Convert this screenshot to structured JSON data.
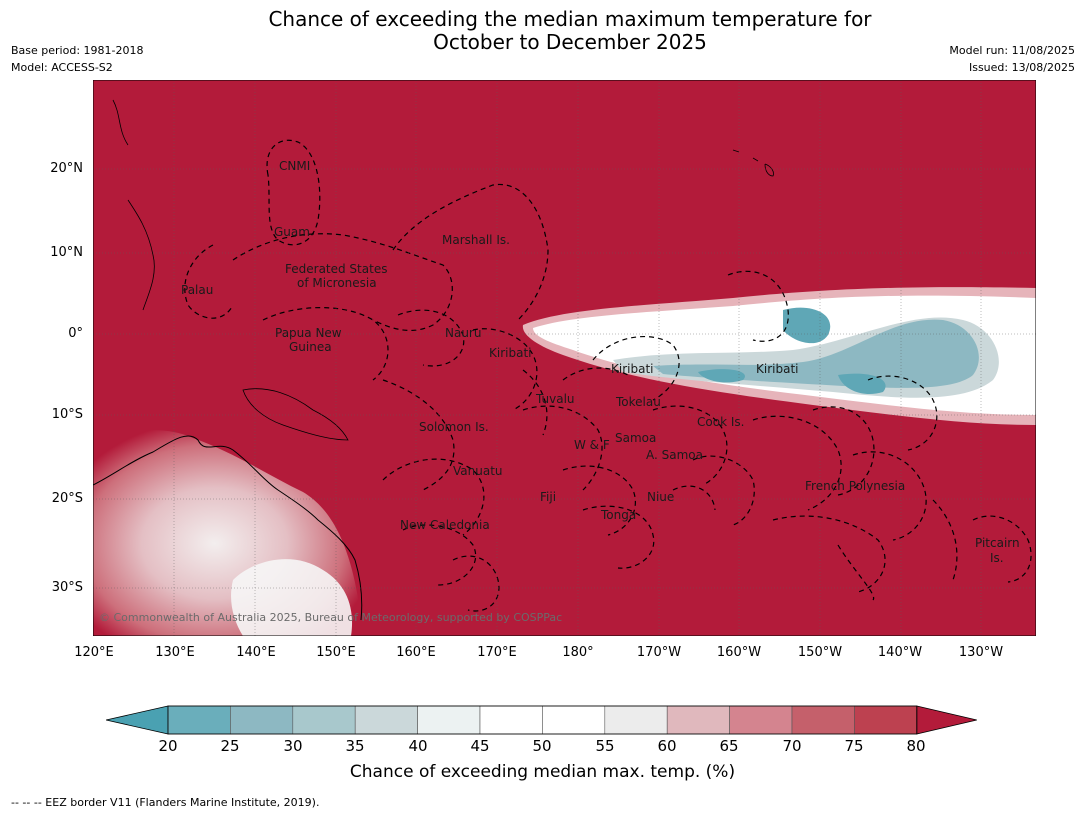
{
  "title_line1": "Chance of exceeding the median maximum temperature for",
  "title_line2": "October to December 2025",
  "meta_left": {
    "base_period": "Base period: 1981-2018",
    "model": "Model: ACCESS-S2"
  },
  "meta_right": {
    "model_run": "Model run: 11/08/2025",
    "issued": "Issued: 13/08/2025"
  },
  "map": {
    "lat_ticks": [
      "20°N",
      "10°N",
      "0°",
      "10°S",
      "20°S",
      "30°S"
    ],
    "lon_ticks": [
      "120°E",
      "130°E",
      "140°E",
      "150°E",
      "160°E",
      "170°E",
      "180°",
      "170°W",
      "160°W",
      "150°W",
      "140°W",
      "130°W"
    ],
    "regions": {
      "cnmi": "CNMI",
      "guam": "Guam",
      "marshall": "Marshall Is.",
      "fsm_1": "Federated States",
      "fsm_2": "of Micronesia",
      "palau": "Palau",
      "png_1": "Papua New",
      "png_2": "Guinea",
      "nauru": "Nauru",
      "kiribati_w": "Kiribati",
      "kiribati_c": "Kiribati",
      "kiribati_e": "Kiribati",
      "tuvalu": "Tuvalu",
      "tokelau": "Tokelau",
      "solomon": "Solomon Is.",
      "cook": "Cook Is.",
      "samoa": "Samoa",
      "wf": "W & F",
      "asamoa": "A. Samoa",
      "vanuatu": "Vanuatu",
      "fiji": "Fiji",
      "niue": "Niue",
      "tonga": "Tonga",
      "french_polynesia": "French Polynesia",
      "new_caledonia": "New Caledonia",
      "pitcairn_1": "Pitcairn",
      "pitcairn_2": "Is."
    },
    "copyright": "© Commonwealth of Australia 2025, Bureau of Meteorology, supported by COSPPac",
    "colors": {
      "high": "#b31b3a",
      "mid_high": "#d4848f",
      "neutral": "#ffffff",
      "low": "#6aaebb",
      "lowest": "#3d9fb0"
    }
  },
  "colorbar": {
    "ticks": [
      "20",
      "25",
      "30",
      "35",
      "40",
      "45",
      "50",
      "55",
      "60",
      "65",
      "70",
      "75",
      "80"
    ],
    "colors": [
      "#4aa1b2",
      "#6aaebb",
      "#8db8c2",
      "#a8c8cc",
      "#cbd8da",
      "#ecf2f2",
      "#ffffff",
      "#ffffff",
      "#ececec",
      "#e0b8bd",
      "#d4848f",
      "#c5606b",
      "#bd4150",
      "#b31b3a"
    ],
    "label": "Chance of exceeding median max. temp. (%)"
  },
  "footnote": "--  --  -- EEZ border V11 (Flanders Marine Institute, 2019)."
}
